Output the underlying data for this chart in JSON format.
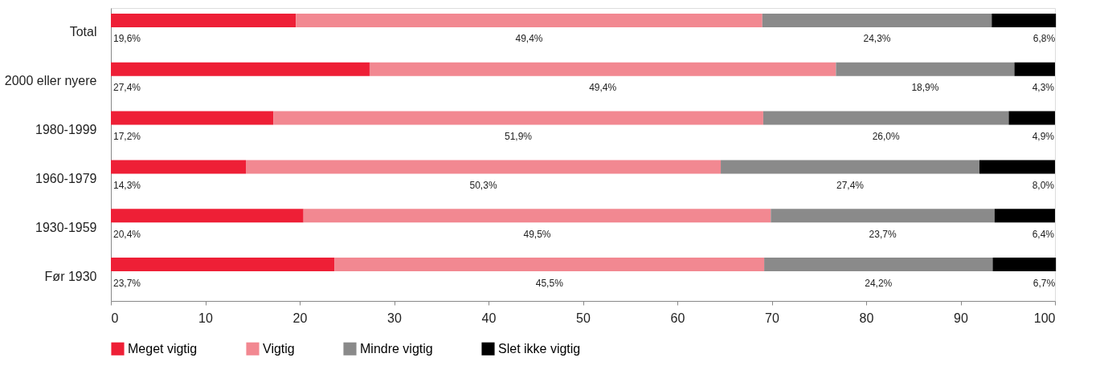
{
  "chart_data": {
    "type": "bar",
    "orientation": "horizontal",
    "stacked": true,
    "categories": [
      "Total",
      "2000 eller nyere",
      "1980-1999",
      "1960-1979",
      "1930-1959",
      "Før 1930"
    ],
    "series": [
      {
        "name": "Meget vigtig",
        "color": "#ee1f36",
        "values": [
          19.6,
          27.4,
          17.2,
          14.3,
          20.4,
          23.7
        ]
      },
      {
        "name": "Vigtig",
        "color": "#f28891",
        "values": [
          49.4,
          49.4,
          51.9,
          50.3,
          49.5,
          45.5
        ]
      },
      {
        "name": "Mindre vigtig",
        "color": "#8a8a8a",
        "values": [
          24.3,
          18.9,
          26.0,
          27.4,
          23.7,
          24.2
        ]
      },
      {
        "name": "Slet ikke vigtig",
        "color": "#000000",
        "values": [
          6.8,
          4.3,
          4.9,
          8.0,
          6.4,
          6.7
        ]
      }
    ],
    "value_labels": [
      [
        "19,6%",
        "27,4%",
        "17,2%",
        "14,3%",
        "20,4%",
        "23,7%"
      ],
      [
        "49,4%",
        "49,4%",
        "51,9%",
        "50,3%",
        "49,5%",
        "45,5%"
      ],
      [
        "24,3%",
        "18,9%",
        "26,0%",
        "27,4%",
        "23,7%",
        "24,2%"
      ],
      [
        "6,8%",
        "4,3%",
        "4,9%",
        "8,0%",
        "6,4%",
        "6,7%"
      ]
    ],
    "xlim": [
      0,
      100
    ],
    "xticks": [
      0,
      10,
      20,
      30,
      40,
      50,
      60,
      70,
      80,
      90,
      100
    ],
    "grid": false,
    "legend": "bottom left"
  }
}
